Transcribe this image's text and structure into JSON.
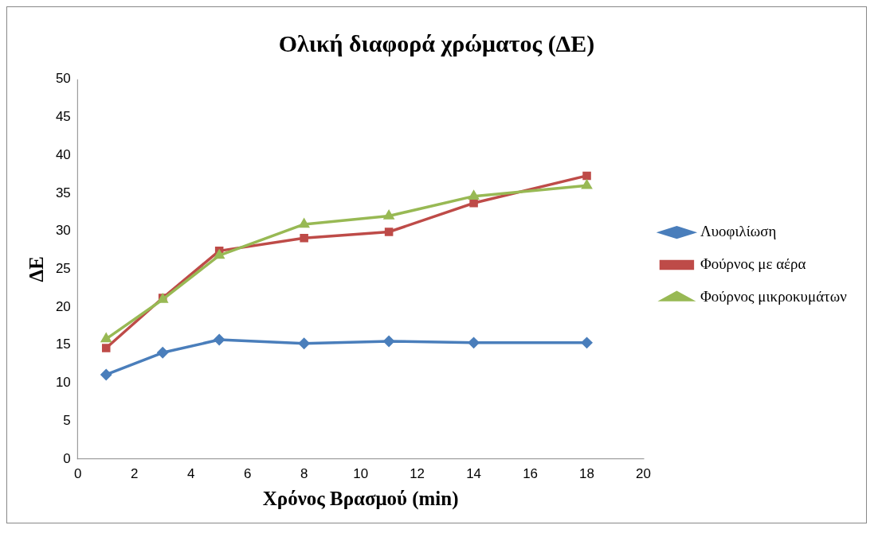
{
  "chart_data": {
    "type": "line",
    "title": "Ολική διαφορά χρώματος (ΔΕ)",
    "xlabel": "Χρόνος Βρασμού (min)",
    "ylabel": "ΔΕ",
    "x": [
      1,
      3,
      5,
      8,
      11,
      14,
      18
    ],
    "series": [
      {
        "name": "Λυοφιλίωση",
        "color": "#4a7ebb",
        "marker": "diamond",
        "values": [
          11.1,
          14.0,
          15.7,
          15.2,
          15.5,
          15.3,
          15.3
        ]
      },
      {
        "name": "Φούρνος με αέρα",
        "color": "#be4b48",
        "marker": "square",
        "values": [
          14.6,
          21.2,
          27.4,
          29.1,
          29.9,
          33.7,
          37.3
        ]
      },
      {
        "name": "Φούρνος μικροκυμάτων",
        "color": "#98b954",
        "marker": "triangle",
        "values": [
          15.8,
          21.0,
          26.8,
          30.9,
          32.0,
          34.6,
          36.0
        ]
      }
    ],
    "xlim": [
      0,
      20
    ],
    "xticks": [
      0,
      2,
      4,
      6,
      8,
      10,
      12,
      14,
      16,
      18,
      20
    ],
    "ylim": [
      0,
      50
    ],
    "yticks": [
      0,
      5,
      10,
      15,
      20,
      25,
      30,
      35,
      40,
      45,
      50
    ],
    "grid": false,
    "legend": "right"
  }
}
